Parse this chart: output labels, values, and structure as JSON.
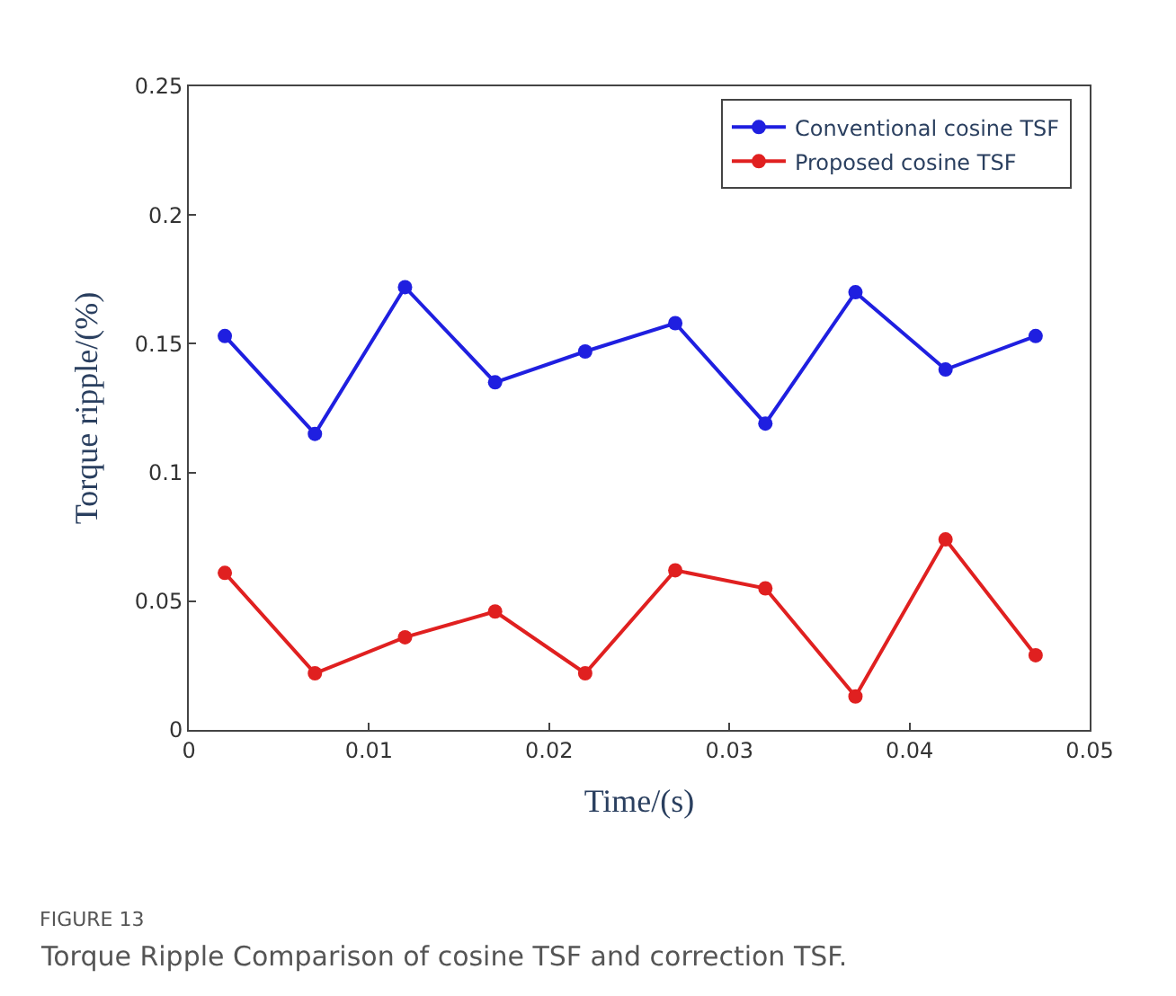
{
  "chart_data": {
    "type": "line",
    "xlabel": "Time/(s)",
    "ylabel": "Torque ripple/(%)",
    "x": [
      0.002,
      0.007,
      0.012,
      0.017,
      0.022,
      0.027,
      0.032,
      0.037,
      0.042,
      0.047
    ],
    "series": [
      {
        "name": "Conventional cosine TSF",
        "color": "#1f1fe0",
        "values": [
          0.153,
          0.115,
          0.172,
          0.135,
          0.147,
          0.158,
          0.119,
          0.17,
          0.14,
          0.153
        ]
      },
      {
        "name": "Proposed cosine TSF",
        "color": "#e02020",
        "values": [
          0.061,
          0.022,
          0.036,
          0.046,
          0.022,
          0.062,
          0.055,
          0.013,
          0.074,
          0.029
        ]
      }
    ],
    "xlim": [
      0,
      0.05
    ],
    "xticks": [
      0,
      0.01,
      0.02,
      0.03,
      0.04,
      0.05
    ],
    "ylim": [
      0,
      0.25
    ],
    "yticks": [
      0,
      0.05,
      0.1,
      0.15,
      0.2,
      0.25
    ],
    "legend": "top right",
    "marker": "circle",
    "line_style": "solid",
    "annotations": [
      "FIGURE 13",
      "Torque Ripple Comparison of cosine TSF and correction TSF."
    ]
  }
}
